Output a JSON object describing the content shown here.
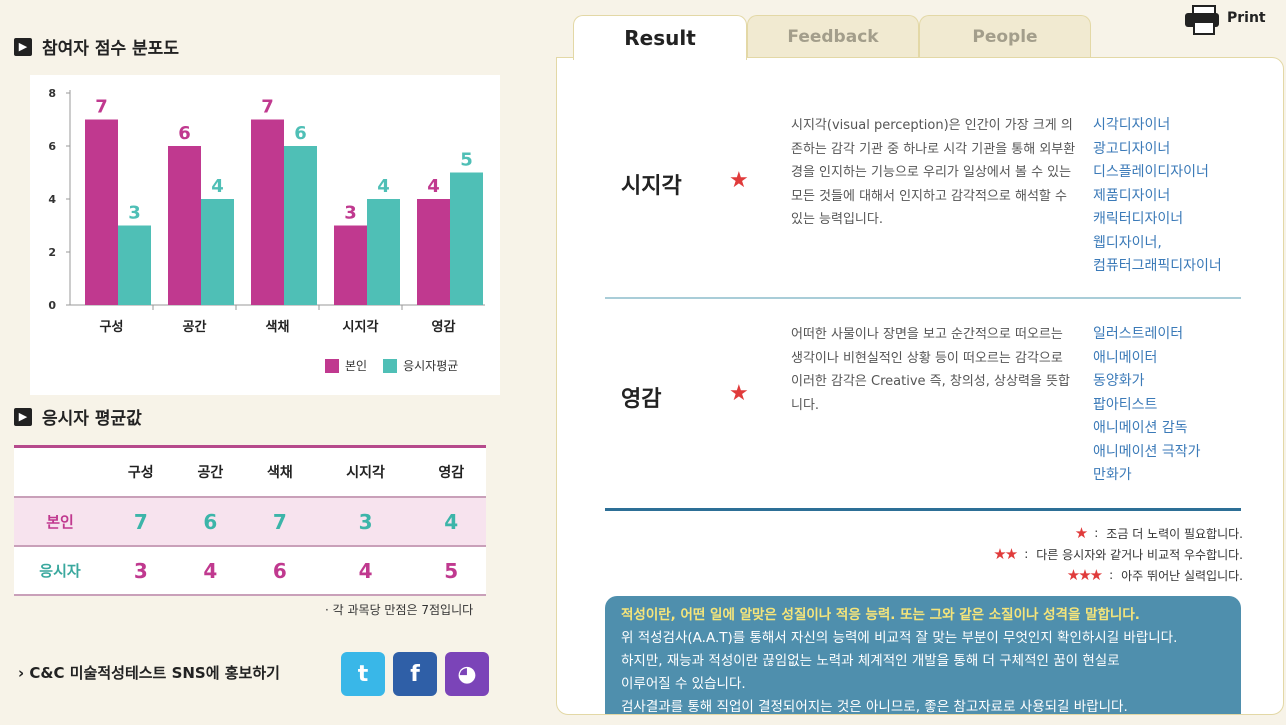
{
  "left": {
    "chart_title": "참여자 점수 분포도",
    "avg_title": "응시자 평균값",
    "legend": {
      "me": "본인",
      "avg": "응시자평균"
    },
    "table": {
      "headers": [
        "구성",
        "공간",
        "색채",
        "시지각",
        "영감"
      ],
      "rows": [
        {
          "label": "본인",
          "values": [
            "7",
            "6",
            "7",
            "3",
            "4"
          ]
        },
        {
          "label": "응시자",
          "values": [
            "3",
            "4",
            "6",
            "4",
            "5"
          ]
        }
      ]
    },
    "note": "· 각 과목당 만점은 7점입니다",
    "sns_text": "C&C 미술적성테스트 SNS에 홍보하기",
    "sns": {
      "twitter": "t",
      "facebook": "f",
      "kakao": "◕"
    }
  },
  "chart_data": {
    "type": "bar",
    "categories": [
      "구성",
      "공간",
      "색채",
      "시지각",
      "영감"
    ],
    "series": [
      {
        "name": "본인",
        "values": [
          7,
          6,
          7,
          3,
          4
        ],
        "color": "#c0398f"
      },
      {
        "name": "응시자평균",
        "values": [
          3,
          4,
          6,
          4,
          5
        ],
        "color": "#4fbfb6"
      }
    ],
    "ylim": [
      0,
      8
    ],
    "yticks": [
      0,
      2,
      4,
      6,
      8
    ],
    "legend_position": "bottom-right",
    "grid": false
  },
  "print_label": "Print",
  "tabs": [
    "Result",
    "Feedback",
    "People"
  ],
  "results": [
    {
      "name": "시지각",
      "stars": "★",
      "desc": "시지각(visual perception)은 인간이 가장 크게 의존하는 감각 기관 중 하나로 시각 기관을 통해 외부환경을 인지하는 기능으로 우리가 일상에서 볼 수 있는 모든 것들에 대해서 인지하고 감각적으로 해석할 수 있는 능력입니다.",
      "jobs": [
        "시각디자이너",
        "광고디자이너",
        "디스플레이디자이너",
        "제품디자이너",
        "캐릭터디자이너",
        "웹디자이너,",
        "컴퓨터그래픽디자이너"
      ]
    },
    {
      "name": "영감",
      "stars": "★",
      "desc": "어떠한 사물이나 장면을 보고 순간적으로 떠오르는 생각이나 비현실적인 상황 등이 떠오르는 감각으로 이러한 감각은 Creative 즉, 창의성, 상상력을 뜻합니다.",
      "jobs": [
        "일러스트레이터",
        "애니메이터",
        "동양화가",
        "팝아티스트",
        "애니메이션 감독",
        "애니메이션 극작가",
        "만화가"
      ]
    }
  ],
  "star_legend": [
    {
      "stars": "★",
      "text": "조금 더 노력이 필요합니다."
    },
    {
      "stars": "★★",
      "text": "다른 응시자와 같거나 비교적 우수합니다."
    },
    {
      "stars": "★★★",
      "text": "아주 뛰어난 실력입니다."
    }
  ],
  "info": {
    "headline": "적성이란, 어떤 일에 알맞은 성질이나 적응 능력. 또는 그와 같은 소질이나 성격을 말합니다.",
    "lines": [
      "위 적성검사(A.A.T)를 통해서 자신의 능력에 비교적 잘 맞는 부분이 무엇인지 확인하시길 바랍니다.",
      "하지만, 재능과 적성이란 끊임없는 노력과 체계적인 개발을 통해 더 구체적인 꿈이 현실로",
      "이루어질 수 있습니다.",
      "검사결과를 통해 직업이 결정되어지는 것은 아니므로, 좋은 참고자료로 사용되길 바랍니다."
    ]
  }
}
